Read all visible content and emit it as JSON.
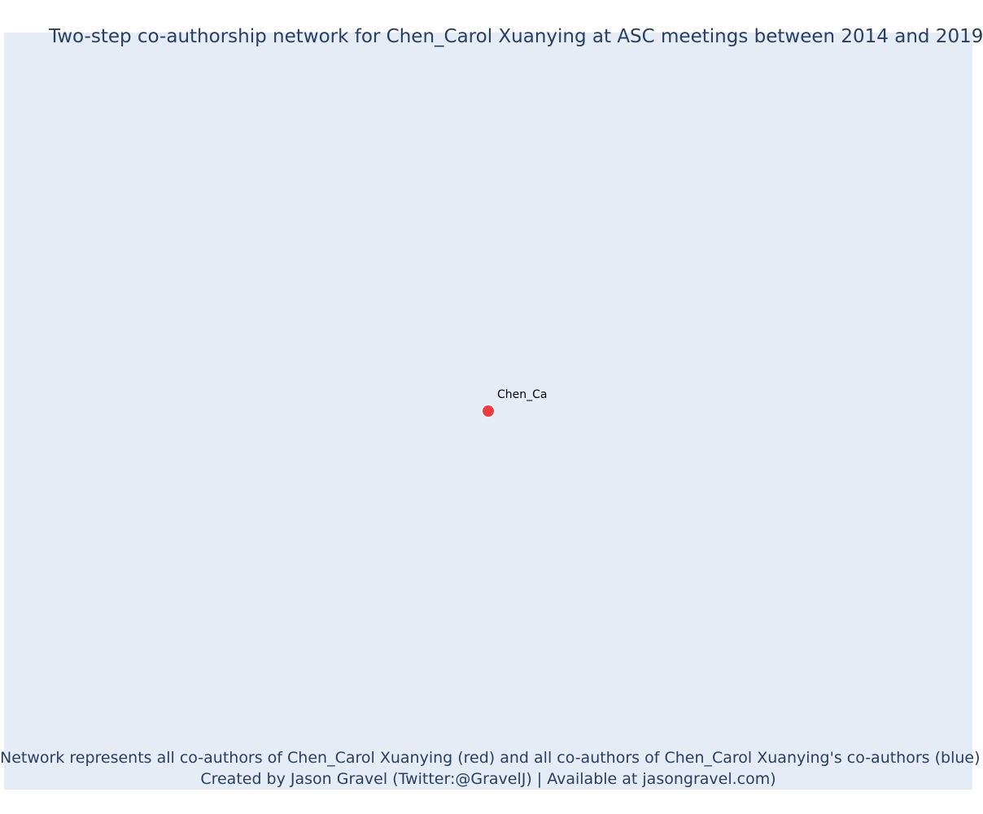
{
  "title": "Two-step co-authorship network for Chen_Carol Xuanying at ASC meetings between 2014 and 2019",
  "nodes": [
    {
      "label": "Chen_Ca",
      "color": "#ef3b44",
      "role": "focal author"
    }
  ],
  "caption": {
    "line1": "Network represents all co-authors of Chen_Carol Xuanying (red) and all co-authors of Chen_Carol Xuanying's co-authors (blue)",
    "line2": "Created by Jason Gravel (Twitter:@GravelJ) | Available at jasongravel.com)"
  },
  "colors": {
    "plot_background": "#e5ecf6",
    "text": "#2a3f5f",
    "focal_node": "#ef3b44"
  }
}
